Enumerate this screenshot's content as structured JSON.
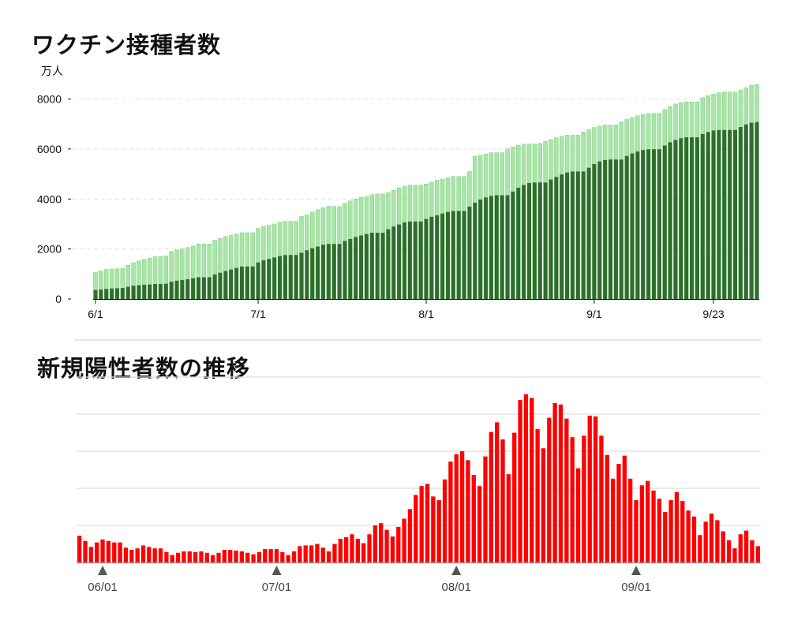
{
  "chart_data": [
    {
      "type": "bar",
      "stacked": false,
      "overlap": true,
      "title": "ワクチン接種者数",
      "unit_label": "万人",
      "xlabel": "",
      "ylabel": "",
      "x_start_date": "6/1",
      "x_tick_labels": [
        "6/1",
        "7/1",
        "8/1",
        "9/1",
        "9/23"
      ],
      "x_tick_days": [
        0,
        30,
        61,
        92,
        114
      ],
      "yticks": [
        0,
        2000,
        4000,
        6000,
        8000
      ],
      "ylim": [
        0,
        8900
      ],
      "grid": "horizontal-dashed",
      "series": [
        {
          "color": "#a8e6a8",
          "values": [
            1060,
            1120,
            1180,
            1200,
            1210,
            1230,
            1350,
            1450,
            1520,
            1580,
            1630,
            1700,
            1700,
            1720,
            1900,
            1960,
            2000,
            2060,
            2120,
            2200,
            2200,
            2200,
            2350,
            2420,
            2500,
            2550,
            2600,
            2650,
            2650,
            2650,
            2820,
            2900,
            2950,
            3000,
            3070,
            3100,
            3100,
            3100,
            3300,
            3370,
            3480,
            3570,
            3650,
            3700,
            3700,
            3700,
            3830,
            3920,
            4000,
            4070,
            4100,
            4170,
            4200,
            4200,
            4250,
            4350,
            4450,
            4500,
            4550,
            4550,
            4550,
            4600,
            4680,
            4750,
            4800,
            4850,
            4900,
            4900,
            4900,
            5100,
            5700,
            5750,
            5800,
            5850,
            5850,
            5850,
            6000,
            6080,
            6150,
            6200,
            6200,
            6200,
            6220,
            6300,
            6380,
            6450,
            6500,
            6550,
            6550,
            6550,
            6680,
            6780,
            6860,
            6920,
            6960,
            6960,
            6960,
            7080,
            7180,
            7260,
            7330,
            7380,
            7420,
            7420,
            7420,
            7580,
            7700,
            7800,
            7860,
            7880,
            7880,
            7880,
            8050,
            8130,
            8200,
            8250,
            8280,
            8280,
            8280,
            8350,
            8450,
            8550,
            8580
          ]
        },
        {
          "color": "#2d6e2d",
          "values": [
            360,
            380,
            400,
            420,
            430,
            440,
            490,
            530,
            550,
            570,
            580,
            600,
            600,
            610,
            690,
            730,
            760,
            790,
            830,
            870,
            870,
            870,
            980,
            1050,
            1120,
            1180,
            1240,
            1300,
            1300,
            1300,
            1460,
            1550,
            1600,
            1660,
            1720,
            1760,
            1760,
            1760,
            1850,
            1950,
            2030,
            2100,
            2170,
            2200,
            2200,
            2200,
            2320,
            2400,
            2480,
            2540,
            2600,
            2650,
            2650,
            2650,
            2790,
            2900,
            2980,
            3060,
            3100,
            3100,
            3100,
            3200,
            3290,
            3350,
            3420,
            3480,
            3520,
            3520,
            3520,
            3700,
            3850,
            3980,
            4060,
            4120,
            4150,
            4150,
            4150,
            4300,
            4450,
            4560,
            4640,
            4660,
            4660,
            4660,
            4780,
            4880,
            4980,
            5060,
            5100,
            5100,
            5100,
            5250,
            5400,
            5500,
            5560,
            5580,
            5580,
            5580,
            5720,
            5820,
            5900,
            5960,
            5990,
            5990,
            5990,
            6140,
            6270,
            6360,
            6430,
            6470,
            6470,
            6470,
            6600,
            6680,
            6740,
            6760,
            6760,
            6760,
            6760,
            6880,
            6980,
            7050,
            7080
          ]
        }
      ]
    },
    {
      "type": "bar",
      "title": "新規陽性者数の推移",
      "xlabel": "",
      "ylabel": "",
      "x_tick_labels": [
        "06/01",
        "07/01",
        "08/01",
        "09/01"
      ],
      "x_tick_days": [
        0,
        30,
        61,
        92
      ],
      "x_start_date": "05/28",
      "ylim": [
        0,
        25000
      ],
      "gridlines": [
        5000,
        10000,
        15000,
        20000,
        25000
      ],
      "grid": "horizontal",
      "color": "#ff0000",
      "values": [
        3600,
        2900,
        2100,
        2700,
        3100,
        2900,
        2700,
        2700,
        2000,
        1700,
        1900,
        2300,
        2100,
        1900,
        1900,
        1400,
        1000,
        1300,
        1500,
        1500,
        1400,
        1500,
        1300,
        1000,
        1300,
        1700,
        1700,
        1600,
        1500,
        1300,
        1100,
        1400,
        1800,
        1800,
        1800,
        1400,
        1000,
        1500,
        2200,
        2300,
        2300,
        2500,
        2000,
        1500,
        2500,
        3200,
        3400,
        3800,
        3200,
        2600,
        3800,
        5000,
        5300,
        4400,
        3500,
        4800,
        5900,
        7200,
        9100,
        10300,
        10600,
        8900,
        8400,
        11200,
        13600,
        14600,
        15000,
        13800,
        11800,
        10300,
        14300,
        17600,
        18900,
        16600,
        11900,
        17500,
        21900,
        22700,
        22200,
        18000,
        15400,
        19500,
        21500,
        21300,
        19400,
        16900,
        12700,
        17100,
        19800,
        19700,
        17100,
        14500,
        11300,
        13300,
        14400,
        11300,
        8400,
        10400,
        11000,
        9700,
        8600,
        6800,
        8400,
        9500,
        8300,
        7000,
        6200,
        3700,
        5500,
        6600,
        5700,
        4200,
        3000,
        1900,
        3800,
        4300,
        3000,
        2200
      ]
    }
  ]
}
